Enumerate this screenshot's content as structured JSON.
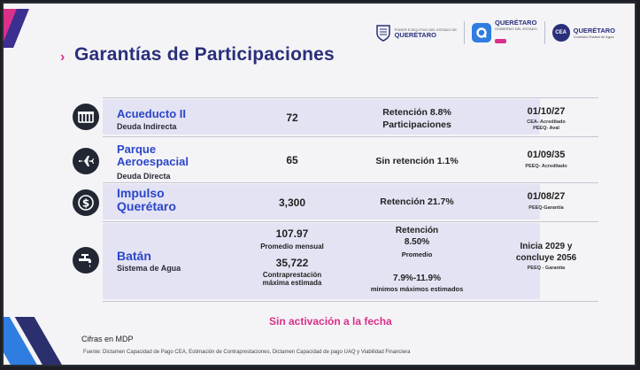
{
  "title": "Garantías de Participaciones",
  "logos": {
    "state_name": "QUERÉTARO",
    "state_sub": "PODER EJECUTIVO DEL ESTADO DE",
    "brand_name": "QUERÉTARO",
    "brand_sub": "GOBIERNO DEL ESTADO",
    "cea_abbr": "CEA",
    "cea_name": "QUERÉTARO",
    "cea_sub": "Comisión Estatal de Agua"
  },
  "rows": [
    {
      "name": "Acueducto II",
      "subtitle": "Deuda Indirecta",
      "amount": "72",
      "retention": "Retención 8.8%",
      "retention_line2": "Participaciones",
      "date": "01/10/27",
      "notes": [
        "CEA- Acreditado",
        "PEEQ- Aval"
      ],
      "icon": "aqueduct-icon"
    },
    {
      "name_line1": "Parque",
      "name_line2": "Aeroespacial",
      "subtitle": "Deuda Directa",
      "amount": "65",
      "retention": "Sin retención 1.1%",
      "date": "01/09/35",
      "notes": [
        "PEEQ- Acreditado"
      ],
      "icon": "airplane-icon"
    },
    {
      "name_line1": "Impulso",
      "name_line2": "Querétaro",
      "amount": "3,300",
      "retention": "Retención 21.7%",
      "date": "01/08/27",
      "notes": [
        "PEEQ-Garantía"
      ],
      "icon": "dollar-coin-icon"
    },
    {
      "name": "Batán",
      "subtitle": "Sistema de Agua",
      "amount1": "107.97",
      "amount1_label": "Promedio mensual",
      "amount2": "35,722",
      "amount2_label1": "Contraprestación",
      "amount2_label2": "máxima estimada",
      "retention_line1": "Retención",
      "retention_line2": "8.50%",
      "retention_line3": "Promedio",
      "range": "7.9%-11.9%",
      "range_label": "mínimos máximos estimados",
      "date_line1": "Inicia 2029 y",
      "date_line2": "concluye 2056",
      "notes": [
        "PEEQ - Garantía"
      ],
      "icon": "faucet-icon"
    }
  ],
  "status": "Sin activación a la fecha",
  "units": "Cifras en MDP",
  "source": "Fuente: Dictamen Capacidad de Pago CEA, Estimación de Contraprestaciones, Dictamen Capacidad de pago UAQ y Viabilidad Financiera",
  "colors": {
    "accent": "#d9308a",
    "title": "#2a2f7a",
    "name": "#2c46c8",
    "band": "#e3e3f4"
  }
}
